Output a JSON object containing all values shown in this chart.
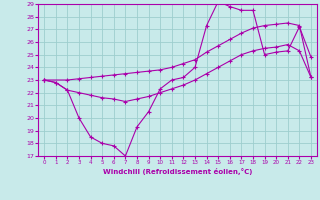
{
  "xlabel": "Windchill (Refroidissement éolien,°C)",
  "xlim": [
    -0.5,
    23.5
  ],
  "ylim": [
    17,
    29
  ],
  "xticks": [
    0,
    1,
    2,
    3,
    4,
    5,
    6,
    7,
    8,
    9,
    10,
    11,
    12,
    13,
    14,
    15,
    16,
    17,
    18,
    19,
    20,
    21,
    22,
    23
  ],
  "yticks": [
    17,
    18,
    19,
    20,
    21,
    22,
    23,
    24,
    25,
    26,
    27,
    28,
    29
  ],
  "bg_color": "#c8eaea",
  "grid_color": "#9ecece",
  "line_color": "#aa00aa",
  "line1_x": [
    0,
    1,
    2,
    3,
    4,
    5,
    6,
    7,
    8,
    9,
    10,
    11,
    12,
    13,
    14,
    15,
    16,
    17,
    18,
    19,
    20,
    21,
    22,
    23
  ],
  "line1_y": [
    23,
    22.8,
    22.2,
    20.0,
    18.5,
    18.0,
    17.8,
    17.0,
    19.3,
    20.5,
    22.3,
    23.0,
    23.2,
    24.0,
    27.3,
    29.2,
    28.8,
    28.5,
    28.5,
    25.0,
    25.2,
    25.3,
    27.2,
    24.8
  ],
  "line2_x": [
    0,
    2,
    3,
    4,
    5,
    6,
    7,
    8,
    9,
    10,
    11,
    12,
    13,
    14,
    15,
    16,
    17,
    18,
    19,
    20,
    21,
    22,
    23
  ],
  "line2_y": [
    23,
    23.0,
    23.1,
    23.2,
    23.3,
    23.4,
    23.5,
    23.6,
    23.7,
    23.8,
    24.0,
    24.3,
    24.6,
    25.2,
    25.7,
    26.2,
    26.7,
    27.1,
    27.3,
    27.4,
    27.5,
    27.3,
    23.2
  ],
  "line3_x": [
    0,
    1,
    2,
    3,
    4,
    5,
    6,
    7,
    8,
    9,
    10,
    11,
    12,
    13,
    14,
    15,
    16,
    17,
    18,
    19,
    20,
    21,
    22,
    23
  ],
  "line3_y": [
    23,
    22.8,
    22.2,
    22.0,
    21.8,
    21.6,
    21.5,
    21.3,
    21.5,
    21.7,
    22.0,
    22.3,
    22.6,
    23.0,
    23.5,
    24.0,
    24.5,
    25.0,
    25.3,
    25.5,
    25.6,
    25.8,
    25.3,
    23.2
  ]
}
